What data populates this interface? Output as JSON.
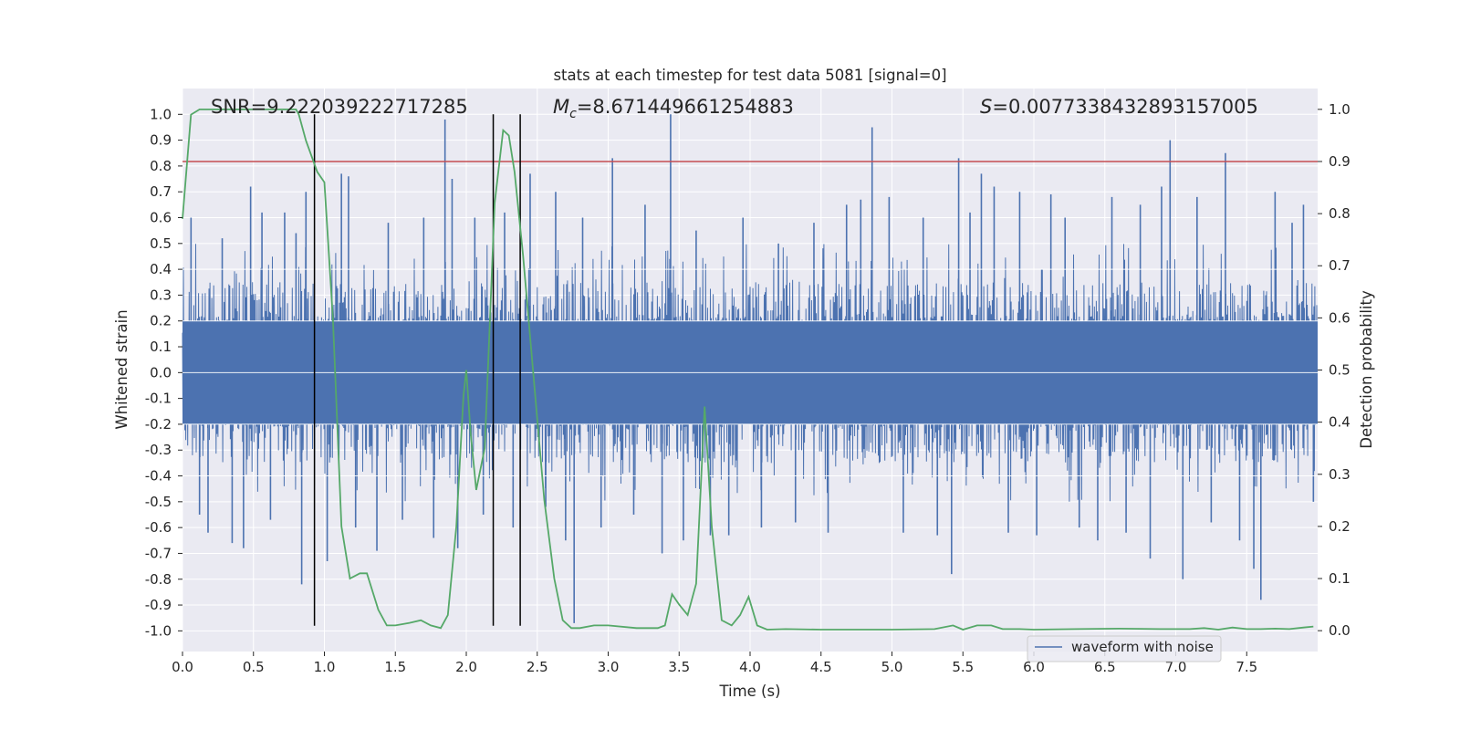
{
  "chart_data": {
    "type": "line",
    "title": "stats at each timestep for test data 5081 [signal=0]",
    "xlabel": "Time (s)",
    "ylabel_left": "Whitened strain",
    "ylabel_right": "Detection probability",
    "xlim": [
      0.0,
      8.0
    ],
    "ylim_left": [
      -1.08,
      1.1
    ],
    "ylim_right": [
      -0.04,
      1.04
    ],
    "x_ticks": [
      "0.0",
      "0.5",
      "1.0",
      "1.5",
      "2.0",
      "2.5",
      "3.0",
      "3.5",
      "4.0",
      "4.5",
      "5.0",
      "5.5",
      "6.0",
      "6.5",
      "7.0",
      "7.5"
    ],
    "x_tick_values": [
      0.0,
      0.5,
      1.0,
      1.5,
      2.0,
      2.5,
      3.0,
      3.5,
      4.0,
      4.5,
      5.0,
      5.5,
      6.0,
      6.5,
      7.0,
      7.5
    ],
    "y_left_ticks": [
      "1.0",
      "0.9",
      "0.8",
      "0.7",
      "0.6",
      "0.5",
      "0.4",
      "0.3",
      "0.2",
      "0.1",
      "0.0",
      "-0.1",
      "-0.2",
      "-0.3",
      "-0.4",
      "-0.5",
      "-0.6",
      "-0.7",
      "-0.8",
      "-0.9",
      "-1.0"
    ],
    "y_left_tick_values": [
      1.0,
      0.9,
      0.8,
      0.7,
      0.6,
      0.5,
      0.4,
      0.3,
      0.2,
      0.1,
      0.0,
      -0.1,
      -0.2,
      -0.3,
      -0.4,
      -0.5,
      -0.6,
      -0.7,
      -0.8,
      -0.9,
      -1.0
    ],
    "y_right_ticks": [
      "1.0",
      "0.9",
      "0.8",
      "0.7",
      "0.6",
      "0.5",
      "0.4",
      "0.3",
      "0.2",
      "0.1",
      "0.0"
    ],
    "y_right_tick_values": [
      1.0,
      0.9,
      0.8,
      0.7,
      0.6,
      0.5,
      0.4,
      0.3,
      0.2,
      0.1,
      0.0
    ],
    "annotations": {
      "snr": "SNR=9.222039222717285",
      "mc": "=8.671449661254883",
      "mc_symbol": "M",
      "mc_sub": "c",
      "s": "=0.0077338432893157005",
      "s_symbol": "S"
    },
    "legend": {
      "label": "waveform with noise",
      "location": "lower-right"
    },
    "threshold": {
      "value": 0.9,
      "axis": "right",
      "color": "#c44e52"
    },
    "vertical_markers": [
      0.93,
      2.19,
      2.38
    ],
    "colors": {
      "waveform": "#4c72b0",
      "probability": "#55a868",
      "threshold": "#c44e52",
      "markers": "#000000",
      "plot_background": "#eaeaf2",
      "grid": "#ffffff"
    },
    "series": [
      {
        "name": "waveform with noise",
        "axis": "left",
        "envelope_pos": 0.2,
        "envelope_neg": -0.2,
        "sample_rate_hint": 2048,
        "spikes": [
          {
            "x": 0.06,
            "y": 0.6
          },
          {
            "x": 0.12,
            "y": -0.55
          },
          {
            "x": 0.18,
            "y": -0.62
          },
          {
            "x": 0.28,
            "y": 0.52
          },
          {
            "x": 0.35,
            "y": -0.66
          },
          {
            "x": 0.43,
            "y": -0.68
          },
          {
            "x": 0.48,
            "y": 0.72
          },
          {
            "x": 0.56,
            "y": 0.62
          },
          {
            "x": 0.62,
            "y": -0.57
          },
          {
            "x": 0.72,
            "y": 0.62
          },
          {
            "x": 0.8,
            "y": 0.54
          },
          {
            "x": 0.84,
            "y": -0.82
          },
          {
            "x": 0.87,
            "y": 0.7
          },
          {
            "x": 1.02,
            "y": -0.73
          },
          {
            "x": 1.12,
            "y": 0.77
          },
          {
            "x": 1.17,
            "y": 0.76
          },
          {
            "x": 1.22,
            "y": -0.6
          },
          {
            "x": 1.37,
            "y": -0.69
          },
          {
            "x": 1.45,
            "y": 0.58
          },
          {
            "x": 1.55,
            "y": -0.57
          },
          {
            "x": 1.7,
            "y": 0.6
          },
          {
            "x": 1.77,
            "y": -0.64
          },
          {
            "x": 1.85,
            "y": 0.98
          },
          {
            "x": 1.9,
            "y": 0.75
          },
          {
            "x": 1.94,
            "y": -0.68
          },
          {
            "x": 2.06,
            "y": 0.6
          },
          {
            "x": 2.12,
            "y": -0.55
          },
          {
            "x": 2.27,
            "y": 0.62
          },
          {
            "x": 2.33,
            "y": -0.6
          },
          {
            "x": 2.45,
            "y": 0.77
          },
          {
            "x": 2.56,
            "y": -0.52
          },
          {
            "x": 2.63,
            "y": 0.7
          },
          {
            "x": 2.7,
            "y": -0.65
          },
          {
            "x": 2.76,
            "y": -0.97
          },
          {
            "x": 2.82,
            "y": 0.6
          },
          {
            "x": 2.95,
            "y": -0.6
          },
          {
            "x": 3.03,
            "y": 0.83
          },
          {
            "x": 3.18,
            "y": -0.55
          },
          {
            "x": 3.26,
            "y": 0.65
          },
          {
            "x": 3.38,
            "y": -0.7
          },
          {
            "x": 3.44,
            "y": 1.0
          },
          {
            "x": 3.53,
            "y": -0.65
          },
          {
            "x": 3.62,
            "y": 0.55
          },
          {
            "x": 3.72,
            "y": -0.63
          },
          {
            "x": 3.85,
            "y": -0.63
          },
          {
            "x": 3.95,
            "y": 0.6
          },
          {
            "x": 4.08,
            "y": -0.6
          },
          {
            "x": 4.2,
            "y": 0.5
          },
          {
            "x": 4.32,
            "y": -0.58
          },
          {
            "x": 4.45,
            "y": 0.58
          },
          {
            "x": 4.55,
            "y": -0.62
          },
          {
            "x": 4.68,
            "y": 0.65
          },
          {
            "x": 4.78,
            "y": 0.67
          },
          {
            "x": 4.86,
            "y": 0.95
          },
          {
            "x": 4.98,
            "y": 0.68
          },
          {
            "x": 5.08,
            "y": -0.62
          },
          {
            "x": 5.22,
            "y": 0.6
          },
          {
            "x": 5.32,
            "y": -0.63
          },
          {
            "x": 5.42,
            "y": -0.78
          },
          {
            "x": 5.47,
            "y": 0.83
          },
          {
            "x": 5.55,
            "y": 0.62
          },
          {
            "x": 5.63,
            "y": 0.77
          },
          {
            "x": 5.72,
            "y": 0.72
          },
          {
            "x": 5.82,
            "y": -0.62
          },
          {
            "x": 5.9,
            "y": 0.7
          },
          {
            "x": 6.02,
            "y": -0.63
          },
          {
            "x": 6.12,
            "y": 0.69
          },
          {
            "x": 6.22,
            "y": 0.6
          },
          {
            "x": 6.32,
            "y": -0.6
          },
          {
            "x": 6.45,
            "y": -0.65
          },
          {
            "x": 6.55,
            "y": 0.68
          },
          {
            "x": 6.65,
            "y": -0.62
          },
          {
            "x": 6.75,
            "y": 0.65
          },
          {
            "x": 6.82,
            "y": -0.72
          },
          {
            "x": 6.9,
            "y": 0.72
          },
          {
            "x": 6.96,
            "y": 0.9
          },
          {
            "x": 7.05,
            "y": -0.8
          },
          {
            "x": 7.15,
            "y": 0.68
          },
          {
            "x": 7.25,
            "y": -0.58
          },
          {
            "x": 7.35,
            "y": 0.85
          },
          {
            "x": 7.45,
            "y": -0.65
          },
          {
            "x": 7.55,
            "y": -0.76
          },
          {
            "x": 7.6,
            "y": -0.88
          },
          {
            "x": 7.7,
            "y": 0.7
          },
          {
            "x": 7.82,
            "y": 0.58
          },
          {
            "x": 7.9,
            "y": 0.65
          },
          {
            "x": 7.97,
            "y": -0.5
          }
        ]
      },
      {
        "name": "detection probability",
        "axis": "right",
        "x": [
          0.0,
          0.06,
          0.12,
          0.2,
          0.3,
          0.4,
          0.5,
          0.6,
          0.7,
          0.8,
          0.82,
          0.87,
          0.95,
          1.0,
          1.06,
          1.12,
          1.18,
          1.25,
          1.3,
          1.38,
          1.44,
          1.5,
          1.6,
          1.68,
          1.75,
          1.82,
          1.87,
          1.93,
          1.98,
          2.0,
          2.03,
          2.07,
          2.13,
          2.2,
          2.26,
          2.3,
          2.34,
          2.4,
          2.47,
          2.55,
          2.62,
          2.68,
          2.74,
          2.8,
          2.9,
          3.0,
          3.2,
          3.35,
          3.4,
          3.45,
          3.5,
          3.56,
          3.62,
          3.68,
          3.73,
          3.8,
          3.87,
          3.93,
          3.99,
          4.05,
          4.12,
          4.25,
          4.5,
          5.0,
          5.3,
          5.43,
          5.5,
          5.6,
          5.7,
          5.78,
          5.9,
          6.0,
          6.3,
          6.6,
          6.9,
          7.1,
          7.2,
          7.3,
          7.4,
          7.5,
          7.6,
          7.7,
          7.8,
          7.9,
          7.97
        ],
        "y": [
          0.79,
          0.99,
          1.0,
          1.0,
          1.0,
          1.0,
          1.0,
          1.0,
          1.0,
          1.0,
          0.99,
          0.94,
          0.88,
          0.86,
          0.6,
          0.2,
          0.1,
          0.11,
          0.11,
          0.04,
          0.01,
          0.01,
          0.015,
          0.02,
          0.01,
          0.005,
          0.03,
          0.2,
          0.45,
          0.5,
          0.38,
          0.27,
          0.35,
          0.82,
          0.96,
          0.95,
          0.88,
          0.72,
          0.5,
          0.25,
          0.1,
          0.02,
          0.005,
          0.005,
          0.01,
          0.01,
          0.005,
          0.005,
          0.01,
          0.07,
          0.05,
          0.03,
          0.09,
          0.43,
          0.2,
          0.02,
          0.01,
          0.03,
          0.065,
          0.01,
          0.002,
          0.003,
          0.002,
          0.002,
          0.003,
          0.01,
          0.002,
          0.01,
          0.01,
          0.003,
          0.003,
          0.002,
          0.003,
          0.004,
          0.003,
          0.003,
          0.005,
          0.002,
          0.006,
          0.003,
          0.003,
          0.004,
          0.003,
          0.006,
          0.008
        ]
      }
    ]
  }
}
